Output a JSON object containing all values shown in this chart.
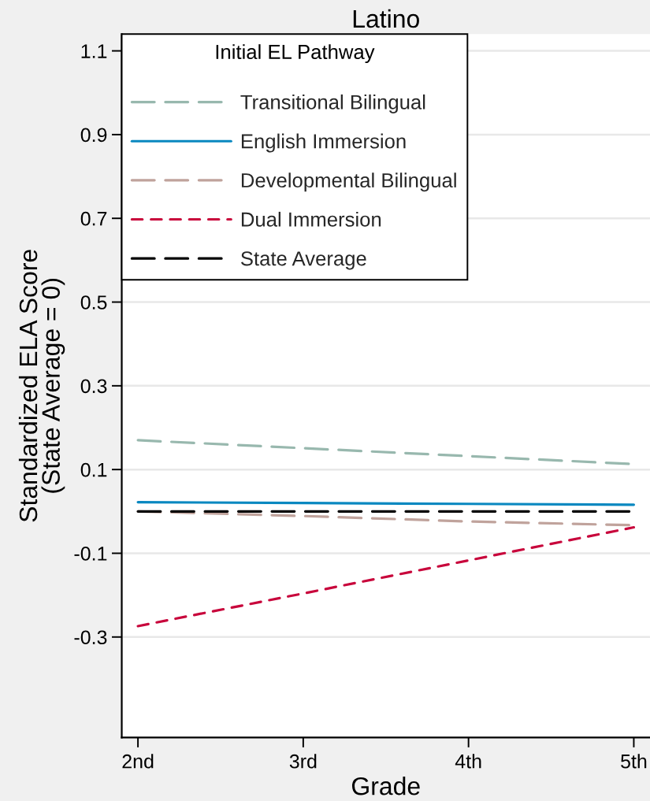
{
  "chart_data": {
    "type": "line",
    "title": "Latino",
    "xlabel": "Grade",
    "ylabel": "Standardized ELA Score\n(State Average = 0)",
    "legend_title": "Initial EL Pathway",
    "categories": [
      "2nd",
      "3rd",
      "4th",
      "5th"
    ],
    "series": [
      {
        "name": "Transitional Bilingual",
        "color": "#98b8ae",
        "line_style": "dashed",
        "values": [
          0.17,
          0.151,
          0.132,
          0.113
        ]
      },
      {
        "name": "English Immersion",
        "color": "#0a88c0",
        "line_style": "solid",
        "values": [
          0.022,
          0.02,
          0.018,
          0.016
        ]
      },
      {
        "name": "Developmental Bilingual",
        "color": "#c0a39c",
        "line_style": "dashed",
        "values": [
          0.0,
          -0.011,
          -0.024,
          -0.033
        ]
      },
      {
        "name": "Dual Immersion",
        "color": "#c8073c",
        "line_style": "dotted",
        "values": [
          -0.274,
          -0.196,
          -0.117,
          -0.038
        ]
      },
      {
        "name": "State Average",
        "color": "#000000",
        "line_style": "dashed",
        "values": [
          0,
          0,
          0,
          0
        ]
      }
    ],
    "ylim": [
      -0.54,
      1.14
    ],
    "yticks": [
      -0.3,
      -0.1,
      0.1,
      0.3,
      0.5,
      0.7,
      0.9,
      1.1
    ],
    "grid": "y",
    "legend": "top left"
  }
}
